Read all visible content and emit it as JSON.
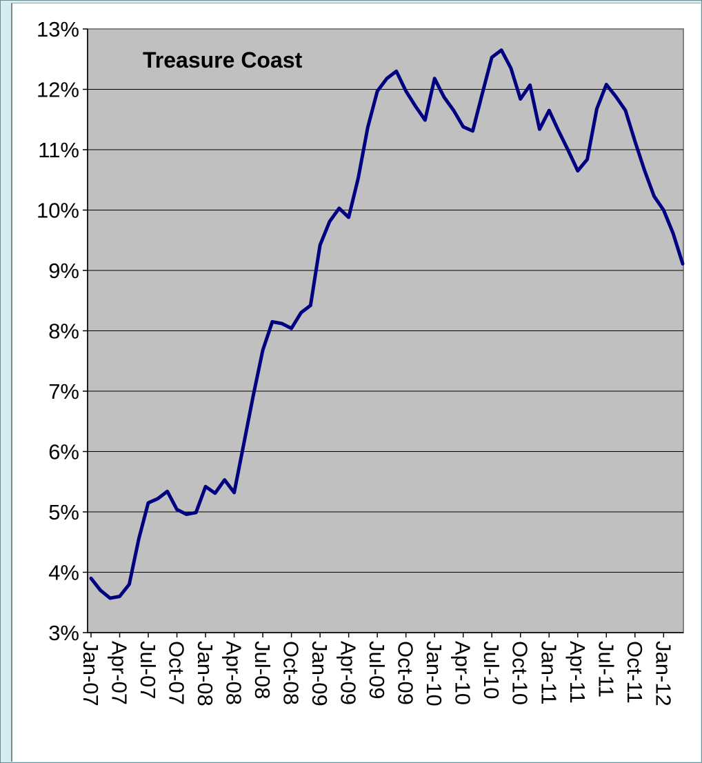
{
  "chart_data": {
    "type": "line",
    "title": "Treasure Coast",
    "xlabel": "",
    "ylabel": "",
    "ylim": [
      0.03,
      0.13
    ],
    "y_ticks": [
      "3%",
      "4%",
      "5%",
      "6%",
      "7%",
      "8%",
      "9%",
      "10%",
      "11%",
      "12%",
      "13%"
    ],
    "x_ticks": [
      "Jan-07",
      "Apr-07",
      "Jul-07",
      "Oct-07",
      "Jan-08",
      "Apr-08",
      "Jul-08",
      "Oct-08",
      "Jan-09",
      "Apr-09",
      "Jul-09",
      "Oct-09",
      "Jan-10",
      "Apr-10",
      "Jul-10",
      "Oct-10",
      "Jan-11",
      "Apr-11",
      "Jul-11",
      "Oct-11",
      "Jan-12"
    ],
    "grid": true,
    "plot_background": "#c0c0c0",
    "line_color": "#000080",
    "series": [
      {
        "values": [
          0.039,
          0.037,
          0.0357,
          0.036,
          0.038,
          0.0455,
          0.0515,
          0.0522,
          0.0534,
          0.0504,
          0.0496,
          0.0499,
          0.0542,
          0.0531,
          0.0553,
          0.0532,
          0.0612,
          0.0693,
          0.0768,
          0.0815,
          0.0812,
          0.0804,
          0.083,
          0.0842,
          0.0942,
          0.0981,
          0.1003,
          0.0988,
          0.1053,
          0.1137,
          0.1197,
          0.1218,
          0.123,
          0.1197,
          0.1172,
          0.1149,
          0.1218,
          0.1187,
          0.1165,
          0.1138,
          0.1131,
          0.1193,
          0.1253,
          0.1265,
          0.1235,
          0.1184,
          0.1207,
          0.1134,
          0.1165,
          0.1131,
          0.1099,
          0.1065,
          0.1084,
          0.1168,
          0.1208,
          0.1188,
          0.1165,
          0.1114,
          0.1066,
          0.1023,
          0.1,
          0.0961,
          0.0911
        ]
      }
    ]
  }
}
